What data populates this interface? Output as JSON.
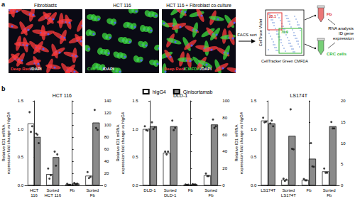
{
  "panel_a": {
    "label": "a",
    "images": [
      {
        "title": "Fibroblasts",
        "stain": [
          {
            "text": "Deep Red",
            "color": "#ff3b3b"
          },
          {
            "text": "/DAPI",
            "color": "#ffffff"
          }
        ]
      },
      {
        "title": "HCT 116",
        "stain": [
          {
            "text": "CMFDA",
            "color": "#3ddc3d"
          },
          {
            "text": "/DAPI",
            "color": "#ffffff"
          }
        ]
      },
      {
        "title": "HCT 116 + Fibroblast co-culture",
        "stain": [
          {
            "text": "Deep Red",
            "color": "#ff3b3b"
          },
          {
            "text": "/",
            "color": "#ffffff"
          },
          {
            "text": "CMFDA",
            "color": "#3ddc3d"
          },
          {
            "text": "/DAPI",
            "color": "#ffffff"
          }
        ]
      }
    ],
    "facs": {
      "arrow_label": "FACS sort",
      "x_label": "CellTracker Green CMFDA",
      "y_label": "CellTrace Violet",
      "gates": [
        {
          "value": 25.1,
          "color": "#e03030"
        },
        {
          "value": 70.9,
          "color": "#2fb52f"
        }
      ]
    },
    "outputs": [
      {
        "label": "Fb",
        "color": "#e03030"
      },
      {
        "label": "CRC cells",
        "color": "#2fb52f"
      }
    ],
    "result": "RNA analysis\nID gene\nexpression"
  },
  "panel_b": {
    "label": "b"
  },
  "chart_data": [
    {
      "type": "bar",
      "title": "HCT 116",
      "legend": "top",
      "categories": [
        "HCT\n116",
        "Sorted\nHCT 116",
        "Fb",
        "Sorted\nFb"
      ],
      "y_label": "Relative ID1 mRNA\nexpression fold change vs hIgG4",
      "ylim": [
        0,
        1.5
      ],
      "yticks": [
        {
          "value": 0,
          "label": "0.0"
        },
        0.5,
        {
          "value": 1,
          "label": "1.0"
        },
        1.5
      ],
      "y2lim": [
        0,
        140
      ],
      "y2ticks": [
        0,
        20,
        40,
        60,
        80,
        100,
        120,
        140
      ],
      "series": [
        {
          "name": "hIgG4",
          "color": "#ffffff",
          "values": [
            1.1,
            0.2,
            null,
            null
          ],
          "points": [
            [
              1.3,
              0.95,
              1.05
            ],
            [
              0.3,
              0.12,
              0.18
            ],
            null,
            null
          ]
        },
        {
          "name": "Ginisortamab",
          "color": "#8a8a8a",
          "values": [
            0.86,
            0.5,
            null,
            null
          ],
          "points": [
            [
              0.92,
              0.9,
              0.75
            ],
            [
              0.6,
              0.35,
              0.55
            ],
            null,
            null
          ]
        },
        {
          "name": "hIgG4",
          "color": "#ffffff",
          "axis": "y2",
          "values": [
            null,
            null,
            1.5,
            16
          ],
          "points": [
            null,
            null,
            [
              2.5,
              1,
              1
            ],
            [
              22,
              12,
              14
            ]
          ]
        },
        {
          "name": "Ginisortamab",
          "color": "#8a8a8a",
          "axis": "y2",
          "values": [
            null,
            null,
            3,
            104
          ],
          "points": [
            null,
            null,
            [
              4,
              2,
              3
            ],
            [
              125,
              95,
              92
            ]
          ]
        }
      ]
    },
    {
      "type": "bar",
      "title": "DLD-1",
      "legend": "top",
      "categories": [
        "DLD-1",
        "Sorted\nDLD-1",
        "Fb",
        "Sorted\nFb"
      ],
      "y_label": "Relative ID1 mRNA\nexpression fold change vs hIgG4",
      "ylim": [
        0,
        1.5
      ],
      "yticks": [
        {
          "value": 0,
          "label": "0.0"
        },
        0.5,
        {
          "value": 1,
          "label": "1.0"
        },
        1.5
      ],
      "y2lim": [
        0,
        100
      ],
      "y2ticks": [
        0,
        20,
        40,
        60,
        80,
        100
      ],
      "series": [
        {
          "name": "hIgG4",
          "color": "#ffffff",
          "values": [
            1.0,
            0.58,
            null,
            null
          ],
          "points": [
            [
              1.05,
              0.98,
              0.97
            ],
            [
              0.6,
              0.55,
              0.6
            ],
            null,
            null
          ]
        },
        {
          "name": "Ginisortamab",
          "color": "#8a8a8a",
          "values": [
            1.05,
            1.05,
            null,
            null
          ],
          "points": [
            [
              1.12,
              1.0,
              1.03
            ],
            [
              1.15,
              0.98,
              1.02
            ],
            null,
            null
          ]
        },
        {
          "name": "hIgG4",
          "color": "#ffffff",
          "axis": "y2",
          "values": [
            null,
            null,
            0.8,
            12
          ],
          "points": [
            null,
            null,
            [
              1,
              0.6,
              0.8
            ],
            [
              14,
              11,
              11
            ]
          ]
        },
        {
          "name": "Ginisortamab",
          "color": "#8a8a8a",
          "axis": "y2",
          "values": [
            null,
            null,
            1.2,
            72
          ],
          "points": [
            null,
            null,
            [
              1.5,
              1,
              1.1
            ],
            [
              78,
              68,
              70
            ]
          ]
        }
      ]
    },
    {
      "type": "bar",
      "title": "LS174T",
      "legend": "top",
      "categories": [
        "LS174T",
        "Sorted\nLS174T",
        "Fb",
        "Sorted\nFb"
      ],
      "y_label": "Relative ID1 mRNA\nexpression fold change vs hIgG4",
      "ylim": [
        0,
        1.5
      ],
      "yticks": [
        {
          "value": 0,
          "label": "0.0"
        },
        0.5,
        {
          "value": 1,
          "label": "1.0"
        },
        1.5
      ],
      "y2lim": [
        0,
        20
      ],
      "y2ticks": [
        0,
        5,
        10,
        15,
        20
      ],
      "series": [
        {
          "name": "hIgG4",
          "color": "#ffffff",
          "values": [
            1.15,
            0.1,
            null,
            null
          ],
          "points": [
            [
              1.2,
              1.12,
              1.13
            ],
            [
              0.12,
              0.08,
              0.1
            ],
            null,
            null
          ]
        },
        {
          "name": "Ginisortamab",
          "color": "#8a8a8a",
          "values": [
            1.1,
            0.88,
            null,
            null
          ],
          "points": [
            [
              1.1,
              1.15,
              1.05
            ],
            [
              1.35,
              0.65,
              0.64
            ],
            null,
            null
          ]
        },
        {
          "name": "hIgG4",
          "color": "#ffffff",
          "axis": "y2",
          "values": [
            null,
            null,
            1.3,
            3.3
          ],
          "points": [
            null,
            null,
            [
              1.5,
              1.2,
              1.2
            ],
            [
              4,
              3,
              3
            ]
          ]
        },
        {
          "name": "Ginisortamab",
          "color": "#8a8a8a",
          "axis": "y2",
          "values": [
            null,
            null,
            6.3,
            14
          ],
          "points": [
            null,
            null,
            [
              10,
              4.5,
              4.4
            ],
            [
              15,
              13.5,
              13.5
            ]
          ]
        }
      ]
    }
  ]
}
